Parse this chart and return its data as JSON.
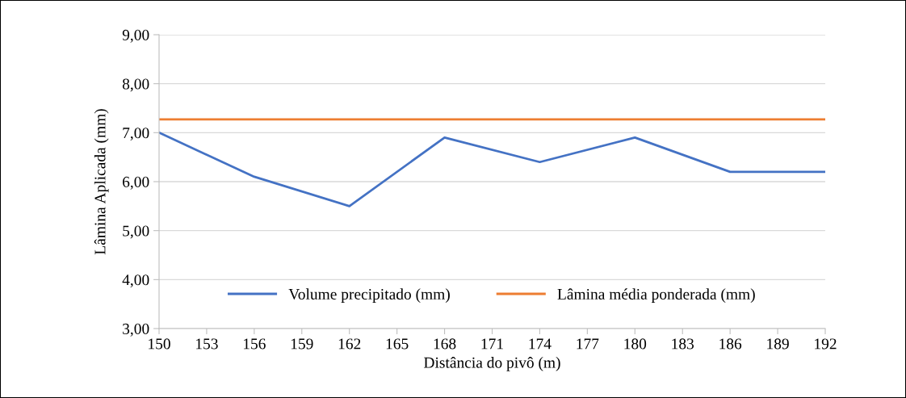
{
  "chart_data": {
    "type": "line",
    "xlabel": "Distância do pivô (m)",
    "ylabel": "Lâmina Aplicada (mm)",
    "series": [
      {
        "name": "Volume precipitado (mm)",
        "color": "#4472c4",
        "x": [
          150,
          156,
          162,
          168,
          174,
          180,
          186,
          192
        ],
        "values": [
          7.0,
          6.1,
          5.5,
          6.9,
          6.4,
          6.9,
          6.2,
          6.2
        ]
      },
      {
        "name": "Lâmina média ponderada (mm)",
        "color": "#ed7d31",
        "x": [
          150,
          192
        ],
        "values": [
          7.27,
          7.27
        ]
      }
    ],
    "xlim": [
      150,
      192
    ],
    "xticks": [
      150,
      153,
      156,
      159,
      162,
      165,
      168,
      171,
      174,
      177,
      180,
      183,
      186,
      189,
      192
    ],
    "ylim": [
      3,
      9
    ],
    "yticks": [
      {
        "value": 3,
        "label": "3,00"
      },
      {
        "value": 4,
        "label": "4,00"
      },
      {
        "value": 5,
        "label": "5,00"
      },
      {
        "value": 6,
        "label": "6,00"
      },
      {
        "value": 7,
        "label": "7,00"
      },
      {
        "value": 8,
        "label": "8,00"
      },
      {
        "value": 9,
        "label": "9,00"
      }
    ],
    "grid": "y",
    "legend": "bottom",
    "marker": "none",
    "line_style": "solid"
  }
}
